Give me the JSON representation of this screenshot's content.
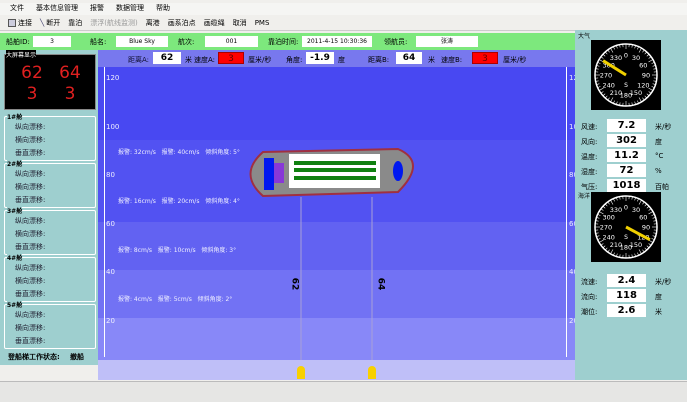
{
  "menu": [
    "文件",
    "基本信息管理",
    "报警",
    "数据管理",
    "帮助"
  ],
  "toolbar": [
    {
      "label": "连接",
      "icon": "connect-icon"
    },
    {
      "label": "断开",
      "icon": "disconnect-icon"
    },
    {
      "label": "靠泊",
      "icon": ""
    },
    {
      "label": "漂浮(航线监测)",
      "icon": "",
      "disabled": true
    },
    {
      "label": "离港",
      "icon": ""
    },
    {
      "label": "画系泊点",
      "icon": ""
    },
    {
      "label": "画缆绳",
      "icon": ""
    },
    {
      "label": "取消",
      "icon": ""
    },
    {
      "label": "PMS",
      "icon": ""
    }
  ],
  "info": {
    "ship_id_label": "船舶ID:",
    "ship_id": "3",
    "ship_name_label": "船名:",
    "ship_name": "Blue Sky",
    "voyage_label": "航次:",
    "voyage": "001",
    "berth_time_label": "靠泊时间:",
    "berth_time": "2011-4-15 10:30:36",
    "pilot_label": "领航员:",
    "pilot": "张涛"
  },
  "header": {
    "dist_a_label": "距离A:",
    "dist_a": "62",
    "dist_unit": "米",
    "speed_a_label": "速度A:",
    "speed_a": "3",
    "speed_unit": "厘米/秒",
    "angle_label": "角度:",
    "angle": "-1.9",
    "angle_unit": "度",
    "dist_b_label": "距离B:",
    "dist_b": "64",
    "speed_b_label": "速度B:",
    "speed_b": "3"
  },
  "big_screen": {
    "title": "大屏幕显示",
    "values": [
      "62",
      "64",
      "3",
      "3"
    ],
    "color": "#e02020"
  },
  "groups": [
    {
      "title": "1#舱",
      "rows": [
        "纵向漂移:",
        "横向漂移:",
        "垂直漂移:"
      ]
    },
    {
      "title": "2#舱",
      "rows": [
        "纵向漂移:",
        "横向漂移:",
        "垂直漂移:"
      ]
    },
    {
      "title": "3#舱",
      "rows": [
        "纵向漂移:",
        "横向漂移:",
        "垂直漂移:"
      ]
    },
    {
      "title": "4#舱",
      "rows": [
        "纵向漂移:",
        "横向漂移:",
        "垂直漂移:"
      ]
    },
    {
      "title": "5#舱",
      "rows": [
        "纵向漂移:",
        "横向漂移:",
        "垂直漂移:"
      ]
    }
  ],
  "work_status": {
    "label": "登船梯工作状态:",
    "value": "撤船"
  },
  "scale": [
    "120",
    "100",
    "80",
    "60",
    "40",
    "20"
  ],
  "alarms": [
    {
      "a": "报警: 32cm/s",
      "b": "报警: 40cm/s",
      "c": "倾斜角度: 5°"
    },
    {
      "a": "报警: 16cm/s",
      "b": "报警: 20cm/s",
      "c": "倾斜角度: 4°"
    },
    {
      "a": "报警: 8cm/s",
      "b": "报警: 10cm/s",
      "c": "倾斜角度: 3°"
    },
    {
      "a": "报警: 4cm/s",
      "b": "报警: 5cm/s",
      "c": "倾斜角度: 2°"
    }
  ],
  "ropes": {
    "a": "62",
    "b": "64"
  },
  "weather": {
    "title": "大气",
    "compass_direction_deg": 302,
    "rows": [
      {
        "label": "风速:",
        "value": "7.2",
        "unit": "米/秒"
      },
      {
        "label": "风向:",
        "value": "302",
        "unit": "度"
      },
      {
        "label": "温度:",
        "value": "11.2",
        "unit": "°C"
      },
      {
        "label": "湿度:",
        "value": "72",
        "unit": "%"
      },
      {
        "label": "气压:",
        "value": "1018",
        "unit": "百帕"
      }
    ]
  },
  "ocean": {
    "title": "海洋",
    "compass_direction_deg": 118,
    "rows": [
      {
        "label": "流速:",
        "value": "2.4",
        "unit": "米/秒"
      },
      {
        "label": "流向:",
        "value": "118",
        "unit": "度"
      },
      {
        "label": "潮位:",
        "value": "2.6",
        "unit": "米"
      }
    ]
  },
  "compass_labels": [
    "0",
    "30",
    "60",
    "90",
    "120",
    "150",
    "180",
    "210",
    "240",
    "270",
    "300",
    "330"
  ],
  "compass_south": "S"
}
